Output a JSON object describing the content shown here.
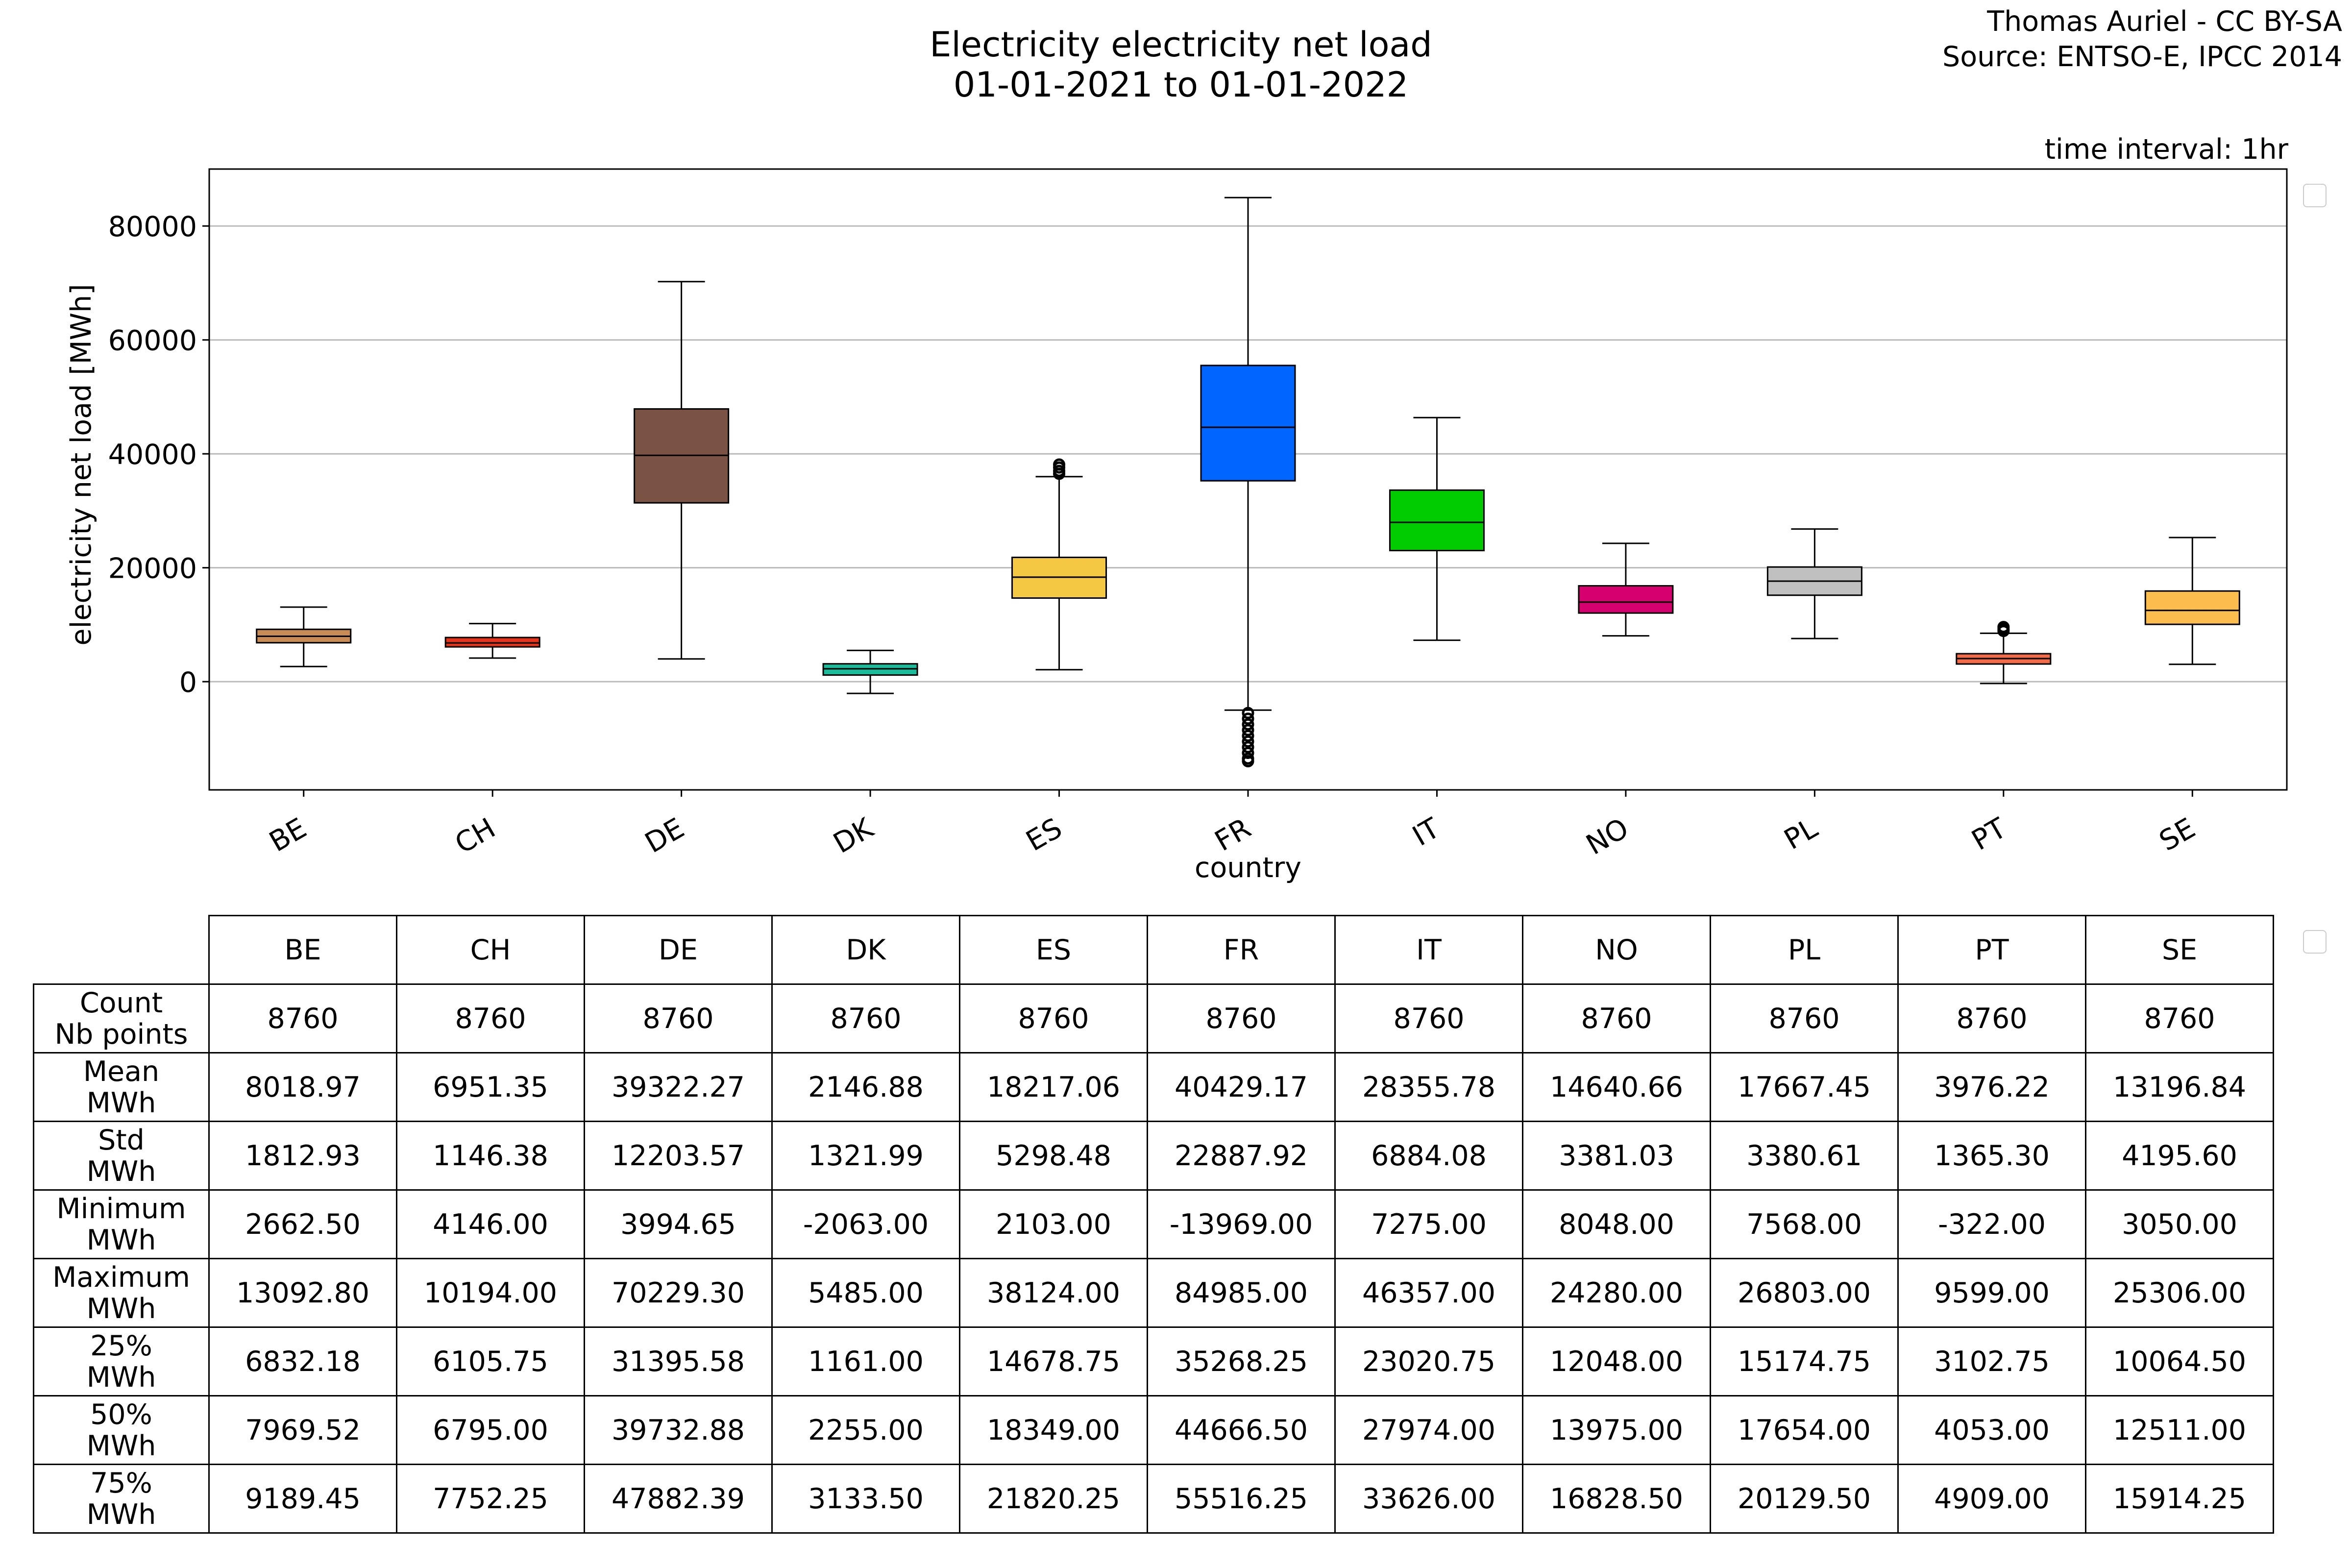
{
  "header": {
    "title_line1": "Electricity electricity net load",
    "title_line2": "01-01-2021 to 01-01-2022",
    "credit_line1": "Thomas Auriel - CC BY-SA",
    "credit_line2": "Source: ENTSO-E, IPCC 2014",
    "interval": "time interval: 1hr"
  },
  "chart_data": {
    "type": "box",
    "title": "Electricity electricity net load\n01-01-2021 to 01-01-2022",
    "xlabel": "country",
    "ylabel": "electricity net load [MWh]",
    "ylim": [
      -19000,
      90000
    ],
    "yticks": [
      0,
      20000,
      40000,
      60000,
      80000
    ],
    "grid": "horizontal",
    "categories": [
      "BE",
      "CH",
      "DE",
      "DK",
      "ES",
      "FR",
      "IT",
      "NO",
      "PL",
      "PT",
      "SE"
    ],
    "colors": [
      "#c98b55",
      "#e8331a",
      "#7a5344",
      "#1abc9c",
      "#f4c842",
      "#0066ff",
      "#00cc00",
      "#d6006e",
      "#c0c0c0",
      "#f46b4a",
      "#fbbd4e"
    ],
    "boxes": [
      {
        "cat": "BE",
        "whislo": 2662.5,
        "q1": 6832.18,
        "med": 7969.52,
        "q3": 9189.45,
        "whishi": 13092.8,
        "fliers": []
      },
      {
        "cat": "CH",
        "whislo": 4146.0,
        "q1": 6105.75,
        "med": 6795.0,
        "q3": 7752.25,
        "whishi": 10194.0,
        "fliers": []
      },
      {
        "cat": "DE",
        "whislo": 3994.65,
        "q1": 31395.58,
        "med": 39732.88,
        "q3": 47882.39,
        "whishi": 70229.3,
        "fliers": []
      },
      {
        "cat": "DK",
        "whislo": -2063.0,
        "q1": 1161.0,
        "med": 2255.0,
        "q3": 3133.5,
        "whishi": 5485.0,
        "fliers": []
      },
      {
        "cat": "ES",
        "whislo": 2103.0,
        "q1": 14678.75,
        "med": 18349.0,
        "q3": 21820.25,
        "whishi": 36000,
        "fliers": [
          36500,
          37000,
          37600,
          38124
        ]
      },
      {
        "cat": "FR",
        "whislo": -5000,
        "q1": 35268.25,
        "med": 44666.5,
        "q3": 55516.25,
        "whishi": 84985.0,
        "fliers": [
          -5500,
          -6500,
          -7500,
          -8500,
          -9500,
          -10500,
          -11500,
          -12500,
          -13500,
          -13969
        ]
      },
      {
        "cat": "IT",
        "whislo": 7275.0,
        "q1": 23020.75,
        "med": 27974.0,
        "q3": 33626.0,
        "whishi": 46357.0,
        "fliers": []
      },
      {
        "cat": "NO",
        "whislo": 8048.0,
        "q1": 12048.0,
        "med": 13975.0,
        "q3": 16828.5,
        "whishi": 24280.0,
        "fliers": []
      },
      {
        "cat": "PL",
        "whislo": 7568.0,
        "q1": 15174.75,
        "med": 17654.0,
        "q3": 20129.5,
        "whishi": 26803.0,
        "fliers": []
      },
      {
        "cat": "PT",
        "whislo": -322.0,
        "q1": 3102.75,
        "med": 4053.0,
        "q3": 4909.0,
        "whishi": 8500,
        "fliers": [
          8900,
          9200,
          9599
        ]
      },
      {
        "cat": "SE",
        "whislo": 3050.0,
        "q1": 10064.5,
        "med": 12511.0,
        "q3": 15914.25,
        "whishi": 25306.0,
        "fliers": []
      }
    ]
  },
  "table": {
    "columns": [
      "BE",
      "CH",
      "DE",
      "DK",
      "ES",
      "FR",
      "IT",
      "NO",
      "PL",
      "PT",
      "SE"
    ],
    "rows": [
      {
        "l1": "Count",
        "l2": "Nb points",
        "values": [
          "8760",
          "8760",
          "8760",
          "8760",
          "8760",
          "8760",
          "8760",
          "8760",
          "8760",
          "8760",
          "8760"
        ]
      },
      {
        "l1": "Mean",
        "l2": "MWh",
        "values": [
          "8018.97",
          "6951.35",
          "39322.27",
          "2146.88",
          "18217.06",
          "40429.17",
          "28355.78",
          "14640.66",
          "17667.45",
          "3976.22",
          "13196.84"
        ]
      },
      {
        "l1": "Std",
        "l2": "MWh",
        "values": [
          "1812.93",
          "1146.38",
          "12203.57",
          "1321.99",
          "5298.48",
          "22887.92",
          "6884.08",
          "3381.03",
          "3380.61",
          "1365.30",
          "4195.60"
        ]
      },
      {
        "l1": "Minimum",
        "l2": "MWh",
        "values": [
          "2662.50",
          "4146.00",
          "3994.65",
          "-2063.00",
          "2103.00",
          "-13969.00",
          "7275.00",
          "8048.00",
          "7568.00",
          "-322.00",
          "3050.00"
        ]
      },
      {
        "l1": "Maximum",
        "l2": "MWh",
        "values": [
          "13092.80",
          "10194.00",
          "70229.30",
          "5485.00",
          "38124.00",
          "84985.00",
          "46357.00",
          "24280.00",
          "26803.00",
          "9599.00",
          "25306.00"
        ]
      },
      {
        "l1": "25%",
        "l2": "MWh",
        "values": [
          "6832.18",
          "6105.75",
          "31395.58",
          "1161.00",
          "14678.75",
          "35268.25",
          "23020.75",
          "12048.00",
          "15174.75",
          "3102.75",
          "10064.50"
        ]
      },
      {
        "l1": "50%",
        "l2": "MWh",
        "values": [
          "7969.52",
          "6795.00",
          "39732.88",
          "2255.00",
          "18349.00",
          "44666.50",
          "27974.00",
          "13975.00",
          "17654.00",
          "4053.00",
          "12511.00"
        ]
      },
      {
        "l1": "75%",
        "l2": "MWh",
        "values": [
          "9189.45",
          "7752.25",
          "47882.39",
          "3133.50",
          "21820.25",
          "55516.25",
          "33626.00",
          "16828.50",
          "20129.50",
          "4909.00",
          "15914.25"
        ]
      }
    ]
  }
}
